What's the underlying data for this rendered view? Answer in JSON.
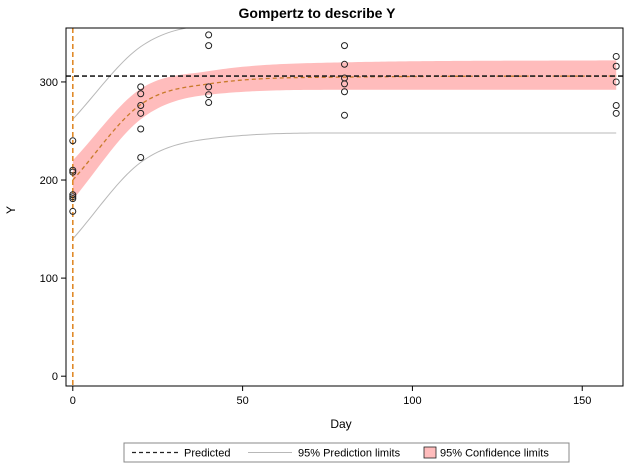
{
  "chart_data": {
    "type": "scatter",
    "title": "Gompertz to describe Y",
    "xlabel": "Day",
    "ylabel": "Y",
    "xlim": [
      -2,
      162
    ],
    "ylim": [
      -10,
      355
    ],
    "xticks": [
      0,
      50,
      100,
      150
    ],
    "yticks": [
      0,
      100,
      200,
      300
    ],
    "reference_lines": {
      "vertical_x": 0,
      "horizontal_y": 306
    },
    "observations": [
      {
        "x": 0,
        "y": 240
      },
      {
        "x": 0,
        "y": 210
      },
      {
        "x": 0,
        "y": 208
      },
      {
        "x": 0,
        "y": 185
      },
      {
        "x": 0,
        "y": 183
      },
      {
        "x": 0,
        "y": 181
      },
      {
        "x": 0,
        "y": 168
      },
      {
        "x": 20,
        "y": 295
      },
      {
        "x": 20,
        "y": 288
      },
      {
        "x": 20,
        "y": 276
      },
      {
        "x": 20,
        "y": 268
      },
      {
        "x": 20,
        "y": 252
      },
      {
        "x": 20,
        "y": 223
      },
      {
        "x": 40,
        "y": 348
      },
      {
        "x": 40,
        "y": 337
      },
      {
        "x": 40,
        "y": 295
      },
      {
        "x": 40,
        "y": 287
      },
      {
        "x": 40,
        "y": 279
      },
      {
        "x": 80,
        "y": 337
      },
      {
        "x": 80,
        "y": 318
      },
      {
        "x": 80,
        "y": 304
      },
      {
        "x": 80,
        "y": 298
      },
      {
        "x": 80,
        "y": 290
      },
      {
        "x": 80,
        "y": 266
      },
      {
        "x": 160,
        "y": 326
      },
      {
        "x": 160,
        "y": 316
      },
      {
        "x": 160,
        "y": 300
      },
      {
        "x": 160,
        "y": 276
      },
      {
        "x": 160,
        "y": 268
      }
    ],
    "predicted": {
      "x": [
        0,
        20,
        40,
        80,
        160
      ],
      "y": [
        200,
        277,
        298,
        305,
        306
      ]
    },
    "confidence_limits": {
      "x": [
        0,
        20,
        40,
        80,
        160
      ],
      "lower": [
        180,
        262,
        287,
        292,
        292
      ],
      "upper": [
        220,
        293,
        311,
        320,
        322
      ]
    },
    "prediction_limits": {
      "x": [
        0,
        20,
        40,
        80,
        160
      ],
      "lower": [
        140,
        218,
        242,
        248,
        248
      ],
      "upper": [
        262,
        336,
        358,
        362,
        363
      ]
    },
    "legend": {
      "position": "bottom",
      "entries": [
        "Predicted",
        "95% Prediction limits",
        "95% Confidence limits"
      ]
    },
    "colors": {
      "confidence_band": "#ffbcbc",
      "predicted_curve": "#c87a2a",
      "vertical_ref": "#e08a2a",
      "horizontal_ref": "#222222",
      "prediction_limits": "#b8b8b8",
      "markers": "#222222"
    }
  }
}
